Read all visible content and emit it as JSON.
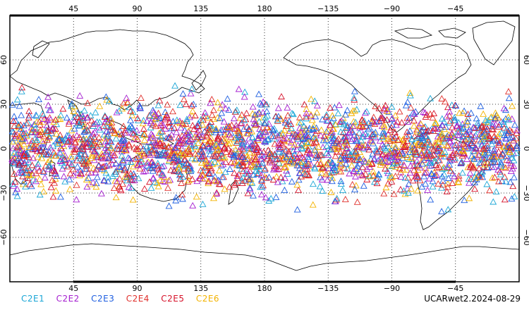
{
  "map": {
    "projection": "cylindrical equidistant",
    "lon_range": [
      0,
      360
    ],
    "lat_range": [
      -90,
      90
    ],
    "lon_tick_labels": [
      "45",
      "90",
      "135",
      "180",
      "−135",
      "−90",
      "−45"
    ],
    "lat_tick_labels": [
      "60",
      "30",
      "0",
      "−30",
      "−60"
    ],
    "grid": "dotted",
    "marker": "open-triangle",
    "lat_band_of_points": [
      -45,
      45
    ]
  },
  "legend": [
    {
      "label": "C2E1",
      "color": "#1aa6d6"
    },
    {
      "label": "C2E2",
      "color": "#a51fd0"
    },
    {
      "label": "C2E3",
      "color": "#1f5fe0"
    },
    {
      "label": "C2E4",
      "color": "#e0302c"
    },
    {
      "label": "C2E5",
      "color": "#d6122a"
    },
    {
      "label": "C2E6",
      "color": "#f3b300"
    }
  ],
  "run_label": "UCARwet2.2024-08-29"
}
